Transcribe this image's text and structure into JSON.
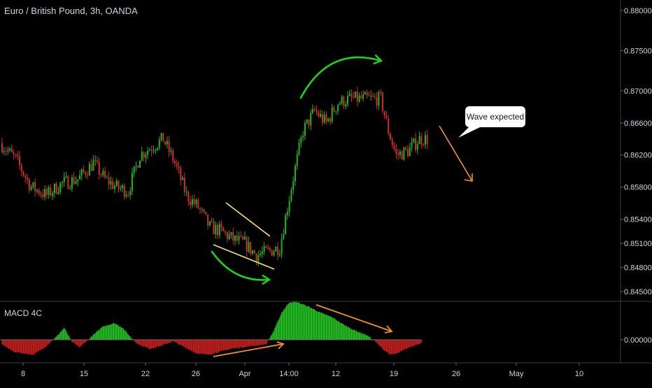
{
  "header": {
    "title": "Euro / British Pound, 3h, OANDA",
    "macd_title": "MACD 4C"
  },
  "callout": {
    "text": "Wave expected"
  },
  "colors": {
    "background": "#000000",
    "up": "#22b61a",
    "down": "#d42b2b",
    "macd_up": "#26c424",
    "macd_down": "#c82020",
    "annotation_green": "#1fd21f",
    "annotation_yellow": "#f5e663",
    "annotation_orange": "#f0922b",
    "axis_text": "#d1d4dc"
  },
  "chart_data": [
    {
      "type": "candlestick",
      "title": "Euro / British Pound, 3h, OANDA",
      "ylim": [
        0.844,
        0.881
      ],
      "y_ticks": [
        "0.88000",
        "0.87500",
        "0.87000",
        "0.86600",
        "0.86200",
        "0.85800",
        "0.85400",
        "0.85100",
        "0.84800",
        "0.84500"
      ],
      "x_ticks": [
        "8",
        "15",
        "22",
        "26",
        "Apr",
        "14:00",
        "12",
        "19",
        "26",
        "May",
        "10"
      ],
      "series": [
        {
          "anchors": [
            [
              0,
              0.8635
            ],
            [
              4,
              0.8615
            ],
            [
              8,
              0.858
            ],
            [
              12,
              0.857
            ],
            [
              16,
              0.8585
            ],
            [
              20,
              0.859
            ],
            [
              24,
              0.861
            ],
            [
              27,
              0.859
            ],
            [
              30,
              0.858
            ],
            [
              33,
              0.8575
            ],
            [
              36,
              0.862
            ],
            [
              39,
              0.863
            ],
            [
              42,
              0.864
            ],
            [
              45,
              0.861
            ],
            [
              48,
              0.857
            ],
            [
              51,
              0.8555
            ],
            [
              54,
              0.853
            ],
            [
              57,
              0.8525
            ],
            [
              60,
              0.8515
            ],
            [
              63,
              0.851
            ],
            [
              66,
              0.8495
            ],
            [
              69,
              0.85
            ],
            [
              72,
              0.8505
            ],
            [
              75,
              0.858
            ],
            [
              78,
              0.865
            ],
            [
              81,
              0.8675
            ],
            [
              84,
              0.866
            ],
            [
              87,
              0.8685
            ],
            [
              90,
              0.869
            ],
            [
              93,
              0.869
            ],
            [
              96,
              0.869
            ],
            [
              98,
              0.869
            ],
            [
              100,
              0.865
            ],
            [
              102,
              0.862
            ],
            [
              105,
              0.8625
            ],
            [
              108,
              0.864
            ],
            [
              110,
              0.864
            ]
          ]
        }
      ]
    },
    {
      "type": "histogram",
      "title": "MACD 4C",
      "y_ticks": [
        "0.00000"
      ],
      "series": [
        {
          "anchors": [
            [
              0,
              -0.0003
            ],
            [
              3,
              -0.0008
            ],
            [
              8,
              -0.001
            ],
            [
              11,
              -0.0005
            ],
            [
              14,
              0.0002
            ],
            [
              16,
              0.0008
            ],
            [
              18,
              -0.00015
            ],
            [
              20,
              -0.0005
            ],
            [
              23,
              0.0002
            ],
            [
              26,
              0.0009
            ],
            [
              29,
              0.0011
            ],
            [
              31,
              0.0008
            ],
            [
              33,
              0.0002
            ],
            [
              35,
              -0.0003
            ],
            [
              38,
              -0.0006
            ],
            [
              41,
              -0.0004
            ],
            [
              44,
              -0.0001
            ],
            [
              47,
              -0.0005
            ],
            [
              50,
              -0.0009
            ],
            [
              53,
              -0.001
            ],
            [
              56,
              -0.0008
            ],
            [
              59,
              -0.0006
            ],
            [
              62,
              -0.0005
            ],
            [
              65,
              -0.0004
            ],
            [
              68,
              -0.0003
            ],
            [
              70,
              0.0006
            ],
            [
              72,
              0.0018
            ],
            [
              74,
              0.0025
            ],
            [
              76,
              0.0025
            ],
            [
              79,
              0.0022
            ],
            [
              82,
              0.0018
            ],
            [
              85,
              0.0015
            ],
            [
              88,
              0.001
            ],
            [
              91,
              0.0006
            ],
            [
              94,
              0.0003
            ],
            [
              96,
              -0.0001
            ],
            [
              98,
              -0.0006
            ],
            [
              100,
              -0.001
            ],
            [
              102,
              -0.0009
            ],
            [
              104,
              -0.0006
            ],
            [
              106,
              -0.0004
            ],
            [
              108,
              -0.0002
            ]
          ]
        }
      ]
    }
  ]
}
